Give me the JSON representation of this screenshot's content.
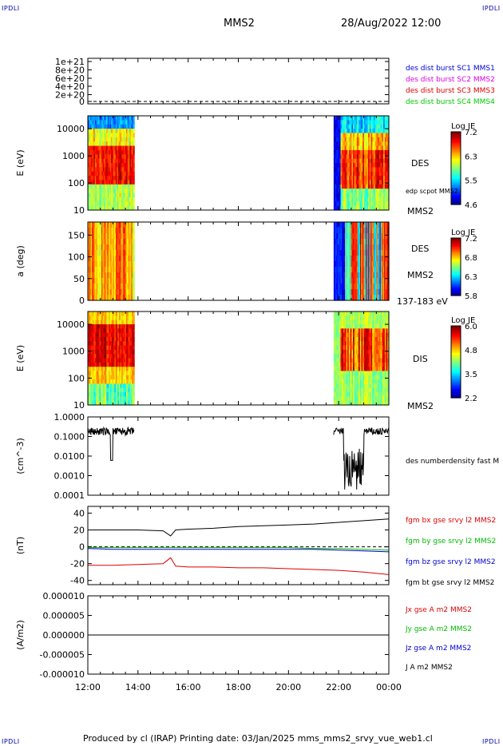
{
  "header": {
    "corner_tl": "IPDLI",
    "corner_tr": "IPDLI",
    "corner_bl": "IPDLI",
    "corner_br": "IPDLI",
    "spacecraft": "MMS2",
    "datetime": "28/Aug/2022 12:00"
  },
  "footer": {
    "text": "Produced by cl (IRAP)   Printing date: 03/Jan/2025   mms_mms2_srvy_vue_web1.cl"
  },
  "time_axis": {
    "range": [
      "12:00",
      "00:00"
    ],
    "ticks": [
      "12:00",
      "14:00",
      "16:00",
      "18:00",
      "20:00",
      "22:00",
      "00:00"
    ]
  },
  "chart_data": [
    {
      "type": "line",
      "panel": "distribution-flags",
      "y_ticks": [
        "1e+21",
        "8e+20",
        "6e+20",
        "4e+20",
        "2e+20",
        "0"
      ],
      "ylim": [
        0,
        1.1e+21
      ],
      "reference_line": 0,
      "legend": [
        {
          "name": "des dist burst SC1 MMS1",
          "color": "#0000dd"
        },
        {
          "name": "des dist burst SC2 MMS2",
          "color": "#dd00dd"
        },
        {
          "name": "des dist burst SC3 MMS3",
          "color": "#dd0000"
        },
        {
          "name": "des dist burst SC4 MMS4",
          "color": "#00cc00"
        }
      ]
    },
    {
      "type": "heatmap",
      "panel": "electron-energy-spectrogram",
      "ylabel": "E (eV)",
      "scale": "log",
      "ylim": [
        10,
        30000
      ],
      "y_ticks": [
        "10000",
        "1000",
        "100",
        "10"
      ],
      "labels": [
        "DES",
        "edp scpot MMS2",
        "MMS2"
      ],
      "colorbar": {
        "title": "Log JE",
        "ticks": [
          "7.2",
          "6.3",
          "5.5",
          "4.6"
        ],
        "range": [
          4.6,
          7.2
        ]
      },
      "data_intervals_hours": [
        [
          12.0,
          13.85
        ],
        [
          21.8,
          24.0
        ]
      ]
    },
    {
      "type": "heatmap",
      "panel": "electron-pitch-angle",
      "ylabel": "a (deg)",
      "ylim": [
        0,
        180
      ],
      "y_ticks": [
        "150",
        "100",
        "50",
        "0"
      ],
      "labels": [
        "DES",
        "MMS2",
        "137-183 eV"
      ],
      "colorbar": {
        "title": "Log JE",
        "ticks": [
          "7.2",
          "6.8",
          "6.3",
          "5.8"
        ],
        "range": [
          5.8,
          7.2
        ]
      },
      "data_intervals_hours": [
        [
          12.0,
          13.85
        ],
        [
          21.8,
          24.0
        ]
      ]
    },
    {
      "type": "heatmap",
      "panel": "ion-energy-spectrogram",
      "ylabel": "E (eV)",
      "scale": "log",
      "ylim": [
        10,
        30000
      ],
      "y_ticks": [
        "10000",
        "1000",
        "100",
        "10"
      ],
      "labels": [
        "DIS",
        "MMS2"
      ],
      "colorbar": {
        "title": "Log JE",
        "ticks": [
          "6.0",
          "4.8",
          "3.5",
          "2.2"
        ],
        "range": [
          2.2,
          6.0
        ]
      },
      "data_intervals_hours": [
        [
          12.0,
          13.85
        ],
        [
          21.8,
          24.0
        ]
      ]
    },
    {
      "type": "line",
      "panel": "electron-density",
      "ylabel": "(cm^-3)",
      "scale": "log",
      "ylim": [
        0.0001,
        1.0
      ],
      "y_ticks": [
        "1.0000",
        "0.1000",
        "0.0100",
        "0.0010",
        "0.0001"
      ],
      "legend": [
        {
          "name": "des numberdensity fast M",
          "color": "#000000"
        }
      ],
      "data_intervals_hours": [
        [
          12.0,
          13.85
        ],
        [
          21.8,
          24.0
        ]
      ]
    },
    {
      "type": "line",
      "panel": "magnetic-field",
      "ylabel": "(nT)",
      "ylim": [
        -45,
        48
      ],
      "y_ticks": [
        "40",
        "20",
        "0",
        "-20",
        "-40"
      ],
      "reference_line": 0,
      "legend": [
        {
          "name": "fgm bx gse srvy l2 MMS2",
          "color": "#dd0000"
        },
        {
          "name": "fgm by gse srvy l2 MMS2",
          "color": "#00bb00"
        },
        {
          "name": "fgm bz gse srvy l2 MMS2",
          "color": "#0000cc"
        },
        {
          "name": "fgm bt gse srvy l2 MMS2",
          "color": "#000000"
        }
      ],
      "series": [
        {
          "name": "fgm bt gse srvy l2 MMS2",
          "x": [
            12,
            13,
            14,
            15,
            15.3,
            15.5,
            16,
            17,
            18,
            19,
            20,
            21,
            22,
            23,
            24
          ],
          "values": [
            20,
            20,
            20,
            19,
            13,
            20,
            21,
            22,
            24,
            25,
            26,
            27,
            29,
            31,
            33
          ]
        },
        {
          "name": "fgm bx gse srvy l2 MMS2",
          "x": [
            12,
            13,
            14,
            15,
            15.3,
            15.5,
            16,
            17,
            18,
            19,
            20,
            21,
            22,
            23,
            24
          ],
          "values": [
            -22,
            -22,
            -21,
            -20,
            -13,
            -23,
            -24,
            -24,
            -25,
            -25,
            -26,
            -27,
            -28,
            -30,
            -33
          ]
        },
        {
          "name": "fgm by gse srvy l2 MMS2",
          "x": [
            12,
            13,
            14,
            15,
            16,
            17,
            18,
            19,
            20,
            21,
            22,
            23,
            24
          ],
          "values": [
            -1,
            -1,
            -1,
            -1,
            -1,
            -1,
            -1,
            -1,
            -1,
            -2,
            -2,
            -3,
            -4
          ]
        },
        {
          "name": "fgm bz gse srvy l2 MMS2",
          "x": [
            12,
            13,
            14,
            15,
            16,
            17,
            18,
            19,
            20,
            21,
            22,
            23,
            24
          ],
          "values": [
            -2,
            -3,
            -3,
            -3,
            -3,
            -3,
            -3,
            -3,
            -3,
            -3,
            -4,
            -5,
            -6
          ]
        }
      ]
    },
    {
      "type": "line",
      "panel": "current-density",
      "ylabel": "(A/m2)",
      "ylim": [
        -1e-05,
        1e-05
      ],
      "y_ticks": [
        "0.000010",
        "0.000005",
        "0.000000",
        "-0.000005",
        "-0.000010"
      ],
      "legend": [
        {
          "name": "Jx gse A m2 MMS2",
          "color": "#dd0000"
        },
        {
          "name": "Jy gse A m2 MMS2",
          "color": "#00bb00"
        },
        {
          "name": "Jz gse A m2 MMS2",
          "color": "#0000cc"
        },
        {
          "name": "J A m2 MMS2",
          "color": "#000000"
        }
      ]
    }
  ]
}
